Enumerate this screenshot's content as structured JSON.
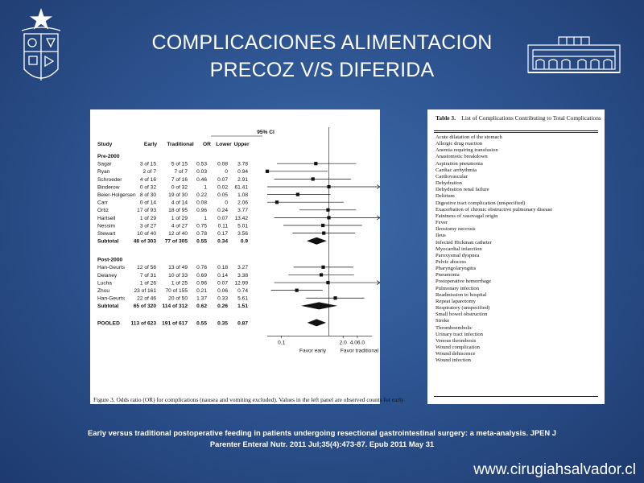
{
  "slide": {
    "title_line1": "COMPLICACIONES ALIMENTACION",
    "title_line2": "PRECOZ V/S DIFERIDA",
    "citation_line1": "Early versus traditional postoperative feeding in patients undergoing resectional gastrointestinal surgery: a meta-analysis. JPEN J",
    "citation_line2": "Parenter Enteral Nutr. 2011 Jul;35(4):473-87.  Epub 2011  May 31",
    "url": "www.cirugiahsalvador.cl",
    "background_color": "#2e5592",
    "left_logo_icon": "university-crest-icon",
    "right_logo_icon": "hospital-building-icon"
  },
  "forest_plot": {
    "headers": {
      "study": "Study",
      "early": "Early",
      "traditional": "Traditional",
      "ci_top": "95% CI",
      "or": "OR",
      "lower": "Lower",
      "upper": "Upper"
    },
    "axis": {
      "ticks": [
        "0.1",
        "2.0",
        "4.06.0"
      ],
      "favor_left": "Favor early",
      "favor_right": "Favor traditional"
    },
    "caption": "Figure 3.   Odds ratio (OR) for complications (nausea and vomiting excluded). Values in the left panel are observed counts for early",
    "groups": [
      {
        "label": "Pre-2000",
        "studies": [
          {
            "study": "Sagar",
            "early": "3 of 15",
            "traditional": "5 of 15",
            "or": "0.53",
            "lower": "0.08",
            "upper": "3.78"
          },
          {
            "study": "Ryan",
            "early": "2 of 7",
            "traditional": "7 of 7",
            "or": "0.03",
            "lower": "0",
            "upper": "0.94"
          },
          {
            "study": "Schroeder",
            "early": "4 of 16",
            "traditional": "7 of 16",
            "or": "0.46",
            "lower": "0.07",
            "upper": "2.91"
          },
          {
            "study": "Binderow",
            "early": "0 of 32",
            "traditional": "0 of 32",
            "or": "1",
            "lower": "0.02",
            "upper": "61.41"
          },
          {
            "study": "Beier-Holgersen",
            "early": "8 of 30",
            "traditional": "19 of 30",
            "or": "0.22",
            "lower": "0.05",
            "upper": "1.08"
          },
          {
            "study": "Carr",
            "early": "0 of 14",
            "traditional": "4 of 14",
            "or": "0.08",
            "lower": "0",
            "upper": "2.06"
          },
          {
            "study": "Ortiz",
            "early": "17 of 93",
            "traditional": "18 of 95",
            "or": "0.96",
            "lower": "0.24",
            "upper": "3.77"
          },
          {
            "study": "Hartsell",
            "early": "1 of 29",
            "traditional": "1 of 29",
            "or": "1",
            "lower": "0.07",
            "upper": "13.42"
          },
          {
            "study": "Nessim",
            "early": "3 of 27",
            "traditional": "4 of 27",
            "or": "0.75",
            "lower": "0.11",
            "upper": "5.01"
          },
          {
            "study": "Stewart",
            "early": "10 of 40",
            "traditional": "12 of 40",
            "or": "0.78",
            "lower": "0.17",
            "upper": "3.56"
          }
        ],
        "subtotal": {
          "study": "Subtotal",
          "early": "48 of 303",
          "traditional": "77 of 305",
          "or": "0.55",
          "lower": "0.34",
          "upper": "0.9"
        }
      },
      {
        "label": "Post-2000",
        "studies": [
          {
            "study": "Han-Geurts",
            "early": "12 of 56",
            "traditional": "13 of 49",
            "or": "0.76",
            "lower": "0.18",
            "upper": "3.27"
          },
          {
            "study": "Delaney",
            "early": "7 of 31",
            "traditional": "10 of 33",
            "or": "0.69",
            "lower": "0.14",
            "upper": "3.38"
          },
          {
            "study": "Lucha",
            "early": "1 of 26",
            "traditional": "1 of 25",
            "or": "0.96",
            "lower": "0.07",
            "upper": "12.99"
          },
          {
            "study": "Zhou",
            "early": "23 of 161",
            "traditional": "70 of 155",
            "or": "0.21",
            "lower": "0.06",
            "upper": "0.74"
          },
          {
            "study": "Han-Geurts",
            "early": "22 of 46",
            "traditional": "20 of 50",
            "or": "1.37",
            "lower": "0.33",
            "upper": "5.61"
          }
        ],
        "subtotal": {
          "study": "Subtotal",
          "early": "65 of 320",
          "traditional": "114 of 312",
          "or": "0.62",
          "lower": "0.26",
          "upper": "1.51"
        }
      }
    ],
    "pooled": {
      "study": "POOLED",
      "early": "113 of 623",
      "traditional": "191 of 617",
      "or": "0.55",
      "lower": "0.35",
      "upper": "0.87"
    }
  },
  "complications_table": {
    "title_bold": "Table 3.",
    "title_rest": "List of Complications Contributing to Total Complications",
    "items": [
      "Acute dilatation of the stomach",
      "Allergic drug reaction",
      "Anemia requiring transfusion",
      "Anastomotic breakdown",
      "Aspiration pneumonia",
      "Cardiac arrhythmia",
      "Cardiovascular",
      "Dehydration",
      "Dehydration renal failure",
      "Delirium",
      "Digestive tract complication (unspecified)",
      "Exacerbation of chronic obstructive pulmonary disease",
      "Faintness of vasovagal origin",
      "Fever",
      "Ileostomy necrosis",
      "Ileus",
      "Infected Hickman catheter",
      "Myocardial infarction",
      "Paroxysmal dyspnea",
      "Pelvic abscess",
      "Pharyngolaryngitis",
      "Pneumonia",
      "Postoperative hemorrhage",
      "Pulmonary infection",
      "Readmission to hospital",
      "Repeat laparotomy",
      "Respiratory (unspecified)",
      "Small bowel obstruction",
      "Stroke",
      "Thromboembolic",
      "Urinary tract infection",
      "Venous thrombosis",
      "Wound complication",
      "Wound dehiscence",
      "Wound infection"
    ]
  }
}
